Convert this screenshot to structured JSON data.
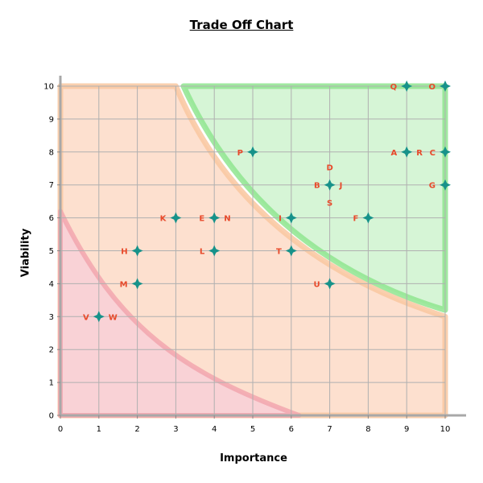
{
  "chart_data": {
    "type": "scatter",
    "title": "Trade Off Chart",
    "xlabel": "Importance",
    "ylabel": "Viability",
    "xlim": [
      0,
      10
    ],
    "ylim": [
      0,
      10
    ],
    "x_ticks": [
      "0",
      "1",
      "2",
      "3",
      "4",
      "5",
      "6",
      "7",
      "8",
      "9",
      "10"
    ],
    "y_ticks": [
      "0",
      "1",
      "2",
      "3",
      "4",
      "5",
      "6",
      "7",
      "8",
      "9",
      "10"
    ],
    "grid": true,
    "colors": {
      "point": "#17928a",
      "label": "#e8492a",
      "zone_high_fill": "#d6f5d6",
      "zone_high_edge": "#8fe58f",
      "zone_mid_fill": "#fde0cf",
      "zone_mid_edge": "#f9c7a0",
      "zone_low_fill": "#f9d2d6",
      "zone_low_edge": "#f2a6ae",
      "grid": "#b0b0b0"
    },
    "points": [
      {
        "x": 9,
        "y": 10,
        "labels": [
          {
            "text": "Q",
            "pos": "left"
          }
        ]
      },
      {
        "x": 10,
        "y": 10,
        "labels": [
          {
            "text": "O",
            "pos": "left"
          }
        ]
      },
      {
        "x": 5,
        "y": 8,
        "labels": [
          {
            "text": "P",
            "pos": "left"
          }
        ]
      },
      {
        "x": 9,
        "y": 8,
        "labels": [
          {
            "text": "A",
            "pos": "left"
          },
          {
            "text": "R",
            "pos": "right"
          }
        ]
      },
      {
        "x": 10,
        "y": 8,
        "labels": [
          {
            "text": "C",
            "pos": "left"
          }
        ]
      },
      {
        "x": 7,
        "y": 7,
        "labels": [
          {
            "text": "D",
            "pos": "top"
          },
          {
            "text": "B",
            "pos": "left"
          },
          {
            "text": "J",
            "pos": "right"
          },
          {
            "text": "S",
            "pos": "bottom"
          }
        ]
      },
      {
        "x": 10,
        "y": 7,
        "labels": [
          {
            "text": "G",
            "pos": "left"
          }
        ]
      },
      {
        "x": 3,
        "y": 6,
        "labels": [
          {
            "text": "K",
            "pos": "left"
          }
        ]
      },
      {
        "x": 4,
        "y": 6,
        "labels": [
          {
            "text": "E",
            "pos": "left"
          },
          {
            "text": "N",
            "pos": "right"
          }
        ]
      },
      {
        "x": 6,
        "y": 6,
        "labels": [
          {
            "text": "I",
            "pos": "left"
          }
        ]
      },
      {
        "x": 8,
        "y": 6,
        "labels": [
          {
            "text": "F",
            "pos": "left"
          }
        ]
      },
      {
        "x": 2,
        "y": 5,
        "labels": [
          {
            "text": "H",
            "pos": "left"
          }
        ]
      },
      {
        "x": 4,
        "y": 5,
        "labels": [
          {
            "text": "L",
            "pos": "left"
          }
        ]
      },
      {
        "x": 6,
        "y": 5,
        "labels": [
          {
            "text": "T",
            "pos": "left"
          }
        ]
      },
      {
        "x": 2,
        "y": 4,
        "labels": [
          {
            "text": "M",
            "pos": "left"
          }
        ]
      },
      {
        "x": 7,
        "y": 4,
        "labels": [
          {
            "text": "U",
            "pos": "left"
          }
        ]
      },
      {
        "x": 1,
        "y": 3,
        "labels": [
          {
            "text": "V",
            "pos": "left"
          },
          {
            "text": "W",
            "pos": "right"
          }
        ]
      }
    ]
  }
}
